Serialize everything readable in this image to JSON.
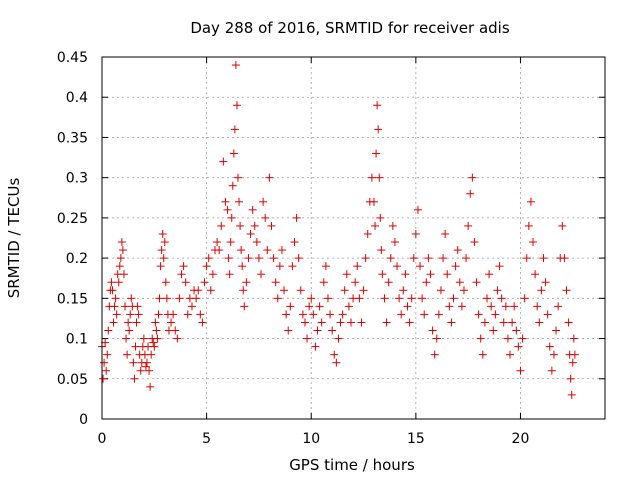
{
  "chart_data": {
    "type": "scatter",
    "title": "Day 288 of 2016, SRMTID for receiver adis",
    "xlabel": "GPS time / hours",
    "ylabel": "SRMTID / TECUs",
    "xlim": [
      0,
      24.04
    ],
    "ylim": [
      0,
      0.45
    ],
    "xticks": [
      0,
      5,
      10,
      15,
      20
    ],
    "xtick_labels": [
      "0",
      "5",
      "10",
      "15",
      "20"
    ],
    "yticks": [
      0,
      0.05,
      0.1,
      0.15,
      0.2,
      0.25,
      0.3,
      0.35,
      0.4,
      0.45
    ],
    "ytick_labels": [
      "0",
      "0.05",
      "0.1",
      "0.15",
      "0.2",
      "0.25",
      "0.3",
      "0.35",
      "0.4",
      "0.45"
    ],
    "grid": true,
    "marker": "+",
    "color": "#e00000",
    "series": [
      {
        "name": "SRMTID",
        "points": [
          [
            0.0,
            0.09
          ],
          [
            0.05,
            0.05
          ],
          [
            0.1,
            0.07
          ],
          [
            0.15,
            0.095
          ],
          [
            0.2,
            0.06
          ],
          [
            0.25,
            0.08
          ],
          [
            0.3,
            0.11
          ],
          [
            0.35,
            0.14
          ],
          [
            0.4,
            0.16
          ],
          [
            0.45,
            0.17
          ],
          [
            0.5,
            0.16
          ],
          [
            0.55,
            0.12
          ],
          [
            0.6,
            0.14
          ],
          [
            0.65,
            0.15
          ],
          [
            0.7,
            0.13
          ],
          [
            0.75,
            0.18
          ],
          [
            0.8,
            0.17
          ],
          [
            0.85,
            0.19
          ],
          [
            0.9,
            0.2
          ],
          [
            0.95,
            0.22
          ],
          [
            1.0,
            0.21
          ],
          [
            1.05,
            0.18
          ],
          [
            1.1,
            0.14
          ],
          [
            1.15,
            0.1
          ],
          [
            1.2,
            0.08
          ],
          [
            1.25,
            0.12
          ],
          [
            1.3,
            0.11
          ],
          [
            1.35,
            0.13
          ],
          [
            1.4,
            0.15
          ],
          [
            1.45,
            0.14
          ],
          [
            1.5,
            0.07
          ],
          [
            1.55,
            0.05
          ],
          [
            1.6,
            0.09
          ],
          [
            1.65,
            0.12
          ],
          [
            1.7,
            0.14
          ],
          [
            1.75,
            0.13
          ],
          [
            1.8,
            0.08
          ],
          [
            1.85,
            0.06
          ],
          [
            1.9,
            0.07
          ],
          [
            1.95,
            0.09
          ],
          [
            2.0,
            0.1
          ],
          [
            2.05,
            0.08
          ],
          [
            2.1,
            0.065
          ],
          [
            2.15,
            0.07
          ],
          [
            2.2,
            0.09
          ],
          [
            2.25,
            0.06
          ],
          [
            2.3,
            0.04
          ],
          [
            2.35,
            0.08
          ],
          [
            2.4,
            0.1
          ],
          [
            2.45,
            0.095
          ],
          [
            2.5,
            0.09
          ],
          [
            2.55,
            0.12
          ],
          [
            2.6,
            0.11
          ],
          [
            2.65,
            0.1
          ],
          [
            2.7,
            0.13
          ],
          [
            2.75,
            0.15
          ],
          [
            2.8,
            0.19
          ],
          [
            2.85,
            0.21
          ],
          [
            2.9,
            0.23
          ],
          [
            2.95,
            0.2
          ],
          [
            3.0,
            0.22
          ],
          [
            3.05,
            0.17
          ],
          [
            3.1,
            0.15
          ],
          [
            3.15,
            0.13
          ],
          [
            3.2,
            0.11
          ],
          [
            3.3,
            0.12
          ],
          [
            3.4,
            0.13
          ],
          [
            3.5,
            0.11
          ],
          [
            3.6,
            0.1
          ],
          [
            3.7,
            0.15
          ],
          [
            3.8,
            0.18
          ],
          [
            3.9,
            0.19
          ],
          [
            4.0,
            0.17
          ],
          [
            4.1,
            0.13
          ],
          [
            4.2,
            0.15
          ],
          [
            4.3,
            0.14
          ],
          [
            4.4,
            0.16
          ],
          [
            4.5,
            0.15
          ],
          [
            4.6,
            0.16
          ],
          [
            4.7,
            0.13
          ],
          [
            4.8,
            0.12
          ],
          [
            4.9,
            0.17
          ],
          [
            5.0,
            0.19
          ],
          [
            5.1,
            0.2
          ],
          [
            5.2,
            0.16
          ],
          [
            5.3,
            0.18
          ],
          [
            5.4,
            0.21
          ],
          [
            5.5,
            0.22
          ],
          [
            5.6,
            0.21
          ],
          [
            5.7,
            0.24
          ],
          [
            5.8,
            0.32
          ],
          [
            5.9,
            0.27
          ],
          [
            6.0,
            0.26
          ],
          [
            6.05,
            0.2
          ],
          [
            6.1,
            0.18
          ],
          [
            6.15,
            0.22
          ],
          [
            6.2,
            0.25
          ],
          [
            6.25,
            0.29
          ],
          [
            6.3,
            0.33
          ],
          [
            6.35,
            0.36
          ],
          [
            6.4,
            0.44
          ],
          [
            6.45,
            0.39
          ],
          [
            6.5,
            0.3
          ],
          [
            6.55,
            0.27
          ],
          [
            6.6,
            0.24
          ],
          [
            6.65,
            0.21
          ],
          [
            6.7,
            0.19
          ],
          [
            6.75,
            0.16
          ],
          [
            6.8,
            0.14
          ],
          [
            6.9,
            0.17
          ],
          [
            7.0,
            0.2
          ],
          [
            7.1,
            0.23
          ],
          [
            7.2,
            0.26
          ],
          [
            7.3,
            0.24
          ],
          [
            7.4,
            0.22
          ],
          [
            7.5,
            0.2
          ],
          [
            7.6,
            0.18
          ],
          [
            7.7,
            0.27
          ],
          [
            7.8,
            0.25
          ],
          [
            7.9,
            0.21
          ],
          [
            8.0,
            0.3
          ],
          [
            8.1,
            0.24
          ],
          [
            8.2,
            0.2
          ],
          [
            8.3,
            0.17
          ],
          [
            8.4,
            0.15
          ],
          [
            8.5,
            0.19
          ],
          [
            8.6,
            0.21
          ],
          [
            8.7,
            0.16
          ],
          [
            8.8,
            0.13
          ],
          [
            8.9,
            0.11
          ],
          [
            9.0,
            0.14
          ],
          [
            9.1,
            0.19
          ],
          [
            9.2,
            0.22
          ],
          [
            9.3,
            0.25
          ],
          [
            9.4,
            0.2
          ],
          [
            9.5,
            0.16
          ],
          [
            9.6,
            0.13
          ],
          [
            9.7,
            0.12
          ],
          [
            9.8,
            0.1
          ],
          [
            9.9,
            0.14
          ],
          [
            10.0,
            0.15
          ],
          [
            10.1,
            0.13
          ],
          [
            10.2,
            0.09
          ],
          [
            10.3,
            0.11
          ],
          [
            10.4,
            0.14
          ],
          [
            10.5,
            0.12
          ],
          [
            10.6,
            0.17
          ],
          [
            10.7,
            0.19
          ],
          [
            10.8,
            0.15
          ],
          [
            10.9,
            0.13
          ],
          [
            11.0,
            0.11
          ],
          [
            11.1,
            0.08
          ],
          [
            11.2,
            0.07
          ],
          [
            11.3,
            0.1
          ],
          [
            11.4,
            0.12
          ],
          [
            11.5,
            0.13
          ],
          [
            11.6,
            0.16
          ],
          [
            11.7,
            0.18
          ],
          [
            11.8,
            0.14
          ],
          [
            11.9,
            0.12
          ],
          [
            12.0,
            0.15
          ],
          [
            12.1,
            0.17
          ],
          [
            12.2,
            0.19
          ],
          [
            12.3,
            0.15
          ],
          [
            12.4,
            0.12
          ],
          [
            12.5,
            0.16
          ],
          [
            12.6,
            0.2
          ],
          [
            12.7,
            0.23
          ],
          [
            12.8,
            0.27
          ],
          [
            12.9,
            0.3
          ],
          [
            13.0,
            0.27
          ],
          [
            13.05,
            0.24
          ],
          [
            13.1,
            0.33
          ],
          [
            13.15,
            0.39
          ],
          [
            13.2,
            0.36
          ],
          [
            13.25,
            0.3
          ],
          [
            13.3,
            0.25
          ],
          [
            13.35,
            0.21
          ],
          [
            13.4,
            0.18
          ],
          [
            13.5,
            0.15
          ],
          [
            13.6,
            0.12
          ],
          [
            13.7,
            0.17
          ],
          [
            13.8,
            0.2
          ],
          [
            13.9,
            0.24
          ],
          [
            14.0,
            0.22
          ],
          [
            14.1,
            0.19
          ],
          [
            14.2,
            0.15
          ],
          [
            14.3,
            0.13
          ],
          [
            14.4,
            0.16
          ],
          [
            14.5,
            0.18
          ],
          [
            14.6,
            0.14
          ],
          [
            14.7,
            0.12
          ],
          [
            14.8,
            0.15
          ],
          [
            14.9,
            0.2
          ],
          [
            15.0,
            0.23
          ],
          [
            15.1,
            0.26
          ],
          [
            15.2,
            0.19
          ],
          [
            15.3,
            0.15
          ],
          [
            15.4,
            0.13
          ],
          [
            15.5,
            0.17
          ],
          [
            15.6,
            0.2
          ],
          [
            15.7,
            0.18
          ],
          [
            15.8,
            0.11
          ],
          [
            15.9,
            0.08
          ],
          [
            16.0,
            0.1
          ],
          [
            16.1,
            0.13
          ],
          [
            16.2,
            0.16
          ],
          [
            16.3,
            0.2
          ],
          [
            16.4,
            0.23
          ],
          [
            16.5,
            0.18
          ],
          [
            16.6,
            0.14
          ],
          [
            16.7,
            0.12
          ],
          [
            16.8,
            0.15
          ],
          [
            16.9,
            0.19
          ],
          [
            17.0,
            0.21
          ],
          [
            17.1,
            0.17
          ],
          [
            17.2,
            0.14
          ],
          [
            17.3,
            0.16
          ],
          [
            17.4,
            0.2
          ],
          [
            17.5,
            0.24
          ],
          [
            17.6,
            0.28
          ],
          [
            17.7,
            0.3
          ],
          [
            17.8,
            0.22
          ],
          [
            17.9,
            0.17
          ],
          [
            18.0,
            0.13
          ],
          [
            18.1,
            0.1
          ],
          [
            18.2,
            0.08
          ],
          [
            18.3,
            0.12
          ],
          [
            18.4,
            0.15
          ],
          [
            18.5,
            0.18
          ],
          [
            18.6,
            0.14
          ],
          [
            18.7,
            0.11
          ],
          [
            18.8,
            0.13
          ],
          [
            18.9,
            0.16
          ],
          [
            19.0,
            0.19
          ],
          [
            19.1,
            0.15
          ],
          [
            19.2,
            0.12
          ],
          [
            19.3,
            0.14
          ],
          [
            19.4,
            0.1
          ],
          [
            19.5,
            0.08
          ],
          [
            19.6,
            0.12
          ],
          [
            19.7,
            0.14
          ],
          [
            19.8,
            0.11
          ],
          [
            19.9,
            0.09
          ],
          [
            20.0,
            0.06
          ],
          [
            20.1,
            0.1
          ],
          [
            20.2,
            0.15
          ],
          [
            20.3,
            0.2
          ],
          [
            20.4,
            0.24
          ],
          [
            20.5,
            0.27
          ],
          [
            20.6,
            0.22
          ],
          [
            20.7,
            0.18
          ],
          [
            20.8,
            0.14
          ],
          [
            20.9,
            0.12
          ],
          [
            21.0,
            0.16
          ],
          [
            21.1,
            0.2
          ],
          [
            21.2,
            0.17
          ],
          [
            21.3,
            0.13
          ],
          [
            21.4,
            0.09
          ],
          [
            21.5,
            0.06
          ],
          [
            21.6,
            0.08
          ],
          [
            21.7,
            0.11
          ],
          [
            21.8,
            0.14
          ],
          [
            21.9,
            0.2
          ],
          [
            22.0,
            0.24
          ],
          [
            22.1,
            0.2
          ],
          [
            22.2,
            0.16
          ],
          [
            22.3,
            0.12
          ],
          [
            22.35,
            0.08
          ],
          [
            22.4,
            0.05
          ],
          [
            22.45,
            0.03
          ],
          [
            22.5,
            0.07
          ],
          [
            22.55,
            0.1
          ],
          [
            22.6,
            0.08
          ]
        ]
      }
    ]
  }
}
